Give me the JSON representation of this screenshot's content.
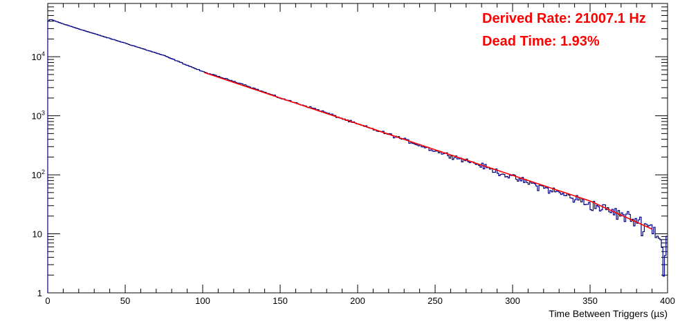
{
  "chart_data": {
    "type": "line",
    "title": "",
    "xlabel": "Time Between Triggers (µs)",
    "ylabel": "",
    "xlim": [
      0,
      400
    ],
    "ylim": [
      1,
      80000
    ],
    "y_scale": "log",
    "grid": false,
    "x_ticks": [
      "0",
      "50",
      "100",
      "150",
      "200",
      "250",
      "300",
      "350",
      "400"
    ],
    "y_ticks": [
      {
        "value": 1,
        "base": "1",
        "exp": ""
      },
      {
        "value": 10,
        "base": "10",
        "exp": ""
      },
      {
        "value": 100,
        "base": "10",
        "exp": "2"
      },
      {
        "value": 1000,
        "base": "10",
        "exp": "3"
      },
      {
        "value": 10000,
        "base": "10",
        "exp": "4"
      }
    ],
    "annotations": [
      {
        "name": "rate",
        "text": "Derived Rate: 21007.1 Hz",
        "color": "#ff0000"
      },
      {
        "name": "dead-time",
        "text": "Dead Time: 1.93%",
        "color": "#ff0000"
      }
    ],
    "series": [
      {
        "kind": "histogram",
        "color": "#000080",
        "x": [
          0,
          2,
          4,
          10,
          25,
          50,
          75,
          100,
          125,
          150,
          175,
          200,
          225,
          250,
          275,
          300,
          325,
          350,
          375,
          390,
          395,
          398,
          399,
          400
        ],
        "y": [
          40000,
          43000,
          41000,
          36000,
          27000,
          17000,
          10500,
          5600,
          3500,
          2000,
          1250,
          720,
          440,
          255,
          160,
          90,
          55,
          32,
          19,
          13,
          9,
          3,
          6,
          12
        ]
      },
      {
        "kind": "fit",
        "color": "#ff0000",
        "x": [
          101,
          150,
          200,
          250,
          300,
          350,
          390
        ],
        "y": [
          5400,
          2000,
          730,
          265,
          98,
          36,
          12
        ]
      }
    ]
  }
}
